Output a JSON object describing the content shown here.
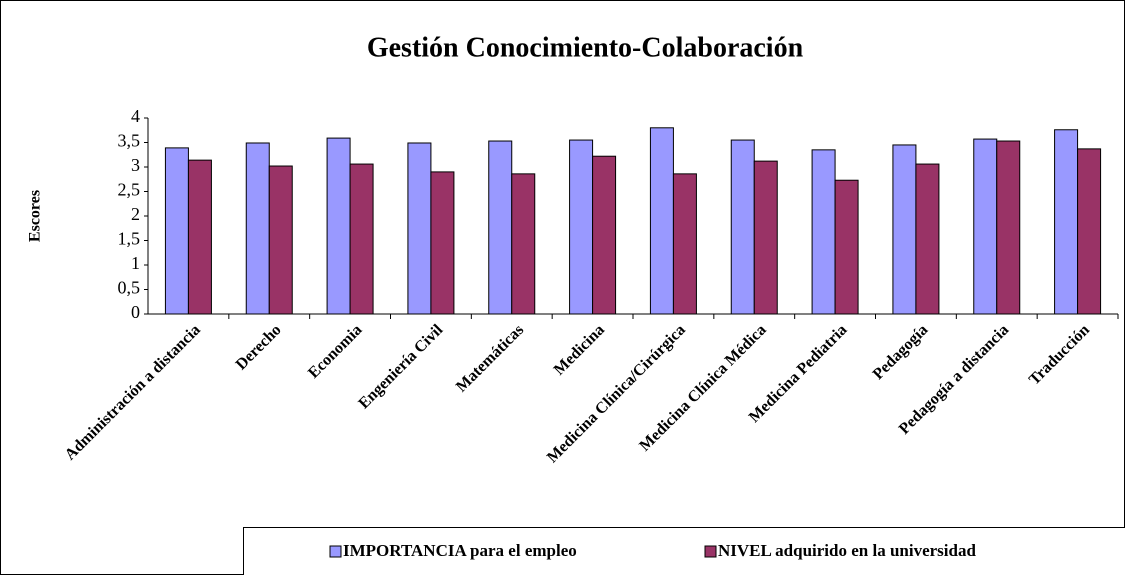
{
  "chart_data": {
    "type": "bar",
    "title": "Gestión Conocimiento-Colaboración",
    "y_label": "Escores",
    "categories": [
      "Administración a distancia",
      "Derecho",
      "Economia",
      "Engeniería Civil",
      "Matemáticas",
      "Medicina",
      "Medicina Clínica/Cirúrgica",
      "Medicina Clínica Médica",
      "Medicina Pediatria",
      "Pedagogía",
      "Pedagogía a distancia",
      "Traducción"
    ],
    "series": [
      {
        "name": "IMPORTANCIA para el empleo",
        "color": "#9999ff",
        "values": [
          3.39,
          3.49,
          3.59,
          3.49,
          3.53,
          3.55,
          3.8,
          3.55,
          3.35,
          3.45,
          3.57,
          3.76
        ]
      },
      {
        "name": "NIVEL adquirido en la universidad",
        "color": "#993366",
        "values": [
          3.14,
          3.02,
          3.06,
          2.9,
          2.86,
          3.22,
          2.86,
          3.12,
          2.73,
          3.06,
          3.53,
          3.37
        ]
      }
    ],
    "ylim": [
      0,
      4
    ],
    "yticks": [
      0,
      {
        "value": 0.5,
        "label": "0,5"
      },
      1,
      {
        "value": 1.5,
        "label": "1,5"
      },
      2,
      {
        "value": 2.5,
        "label": "2,5"
      },
      3,
      {
        "value": 3.5,
        "label": "3,5"
      },
      4
    ],
    "legend": "bottom"
  }
}
